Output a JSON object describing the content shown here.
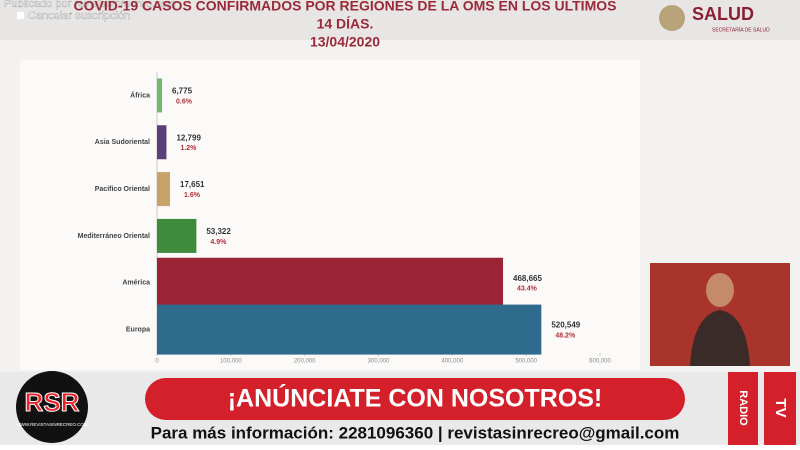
{
  "overlay": {
    "publisher": "Publicado por revistasinrecreo.com",
    "unsubscribe": "Cancelar suscripción"
  },
  "logo": {
    "name": "SALUD",
    "subtitle": "SECRETARÍA DE SALUD"
  },
  "chart_data": {
    "type": "hbar",
    "title": "COVID-19 CASOS CONFIRMADOS POR REGIONES DE LA OMS EN LOS ÚLTIMOS",
    "title_line2": "14 DÍAS.",
    "subtitle": "13/04/2020",
    "categories": [
      "África",
      "Asia Sudoriental",
      "Pacífico Oriental",
      "Mediterráneo Oriental",
      "América",
      "Europa"
    ],
    "values": [
      6775,
      12799,
      17651,
      53322,
      468665,
      520549
    ],
    "value_labels": [
      "6,775",
      "12,799",
      "17,651",
      "53,322",
      "468,665",
      "520,549"
    ],
    "percent_labels": [
      "0.6%",
      "1.2%",
      "1.6%",
      "4.9%",
      "43.4%",
      "48.2%"
    ],
    "colors": [
      "#72b86c",
      "#5b3f78",
      "#c9a26a",
      "#3f8b3c",
      "#9b2336",
      "#2f6b8c"
    ],
    "xlim": [
      0,
      600000
    ],
    "xticks": [
      0,
      {
        "value": 100000,
        "label": "100,000"
      },
      {
        "value": 200000,
        "label": "200,000"
      },
      {
        "value": 300000,
        "label": "300,000"
      },
      {
        "value": 400000,
        "label": "400,000"
      },
      {
        "value": 500000,
        "label": "500,000"
      },
      {
        "value": 600000,
        "label": "600,000"
      }
    ]
  },
  "banner": {
    "headline": "¡ANÚNCIATE CON NOSOTROS!",
    "info": "Para más información: 2281096360 | revistasinrecreo@gmail.com",
    "logo": "RSR",
    "site": "WWW.REVISTASINRECREO.COM",
    "radio": "RADIO",
    "tv": "TV"
  }
}
